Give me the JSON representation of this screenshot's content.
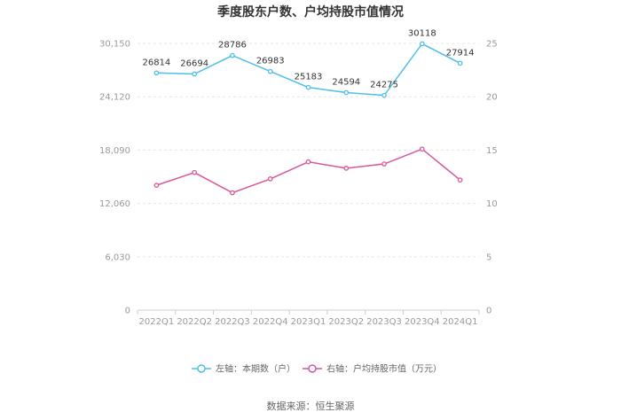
{
  "chart_data": {
    "type": "line",
    "title": "季度股东户数、户均持股市值情况",
    "categories": [
      "2022Q1",
      "2022Q2",
      "2022Q3",
      "2022Q4",
      "2023Q1",
      "2023Q2",
      "2023Q3",
      "2023Q4",
      "2024Q1"
    ],
    "series": [
      {
        "name": "左轴：本期数（户）",
        "axis": "left",
        "color": "#4dbfea",
        "values": [
          26814,
          26694,
          28786,
          26983,
          25183,
          24594,
          24275,
          30118,
          27914
        ],
        "labels": [
          "26814",
          "26694",
          "28786",
          "26983",
          "25183",
          "24594",
          "24275",
          "30118",
          "27914"
        ]
      },
      {
        "name": "右轴：户均持股市值（万元）",
        "axis": "right",
        "color": "#d9569d",
        "values": [
          11.7,
          12.9,
          11.0,
          12.3,
          13.9,
          13.3,
          13.7,
          15.1,
          12.2
        ]
      }
    ],
    "left_axis": {
      "min": 0,
      "max": 30150,
      "ticks": [
        0,
        6030,
        12060,
        18090,
        24120,
        30150
      ],
      "tick_labels": [
        "0",
        "6,030",
        "12,060",
        "18,090",
        "24,120",
        "30,150"
      ]
    },
    "right_axis": {
      "min": 0,
      "max": 25,
      "ticks": [
        0,
        5,
        10,
        15,
        20,
        25
      ],
      "tick_labels": [
        "0",
        "5",
        "10",
        "15",
        "20",
        "25"
      ]
    },
    "grid": true,
    "legend_position": "bottom",
    "source": "数据来源：恒生聚源"
  }
}
